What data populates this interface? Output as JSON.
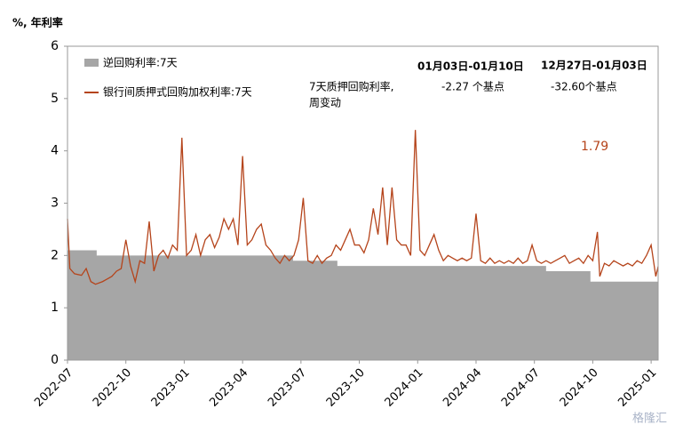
{
  "chart_data": {
    "type": "area-line",
    "y_axis_label": "%, 年利率",
    "xlim": [
      2022.5,
      2025.03
    ],
    "xticks": [
      {
        "value": 2022.5,
        "label": "2022-07"
      },
      {
        "value": 2022.75,
        "label": "2022-10"
      },
      {
        "value": 2023.0,
        "label": "2023-01"
      },
      {
        "value": 2023.25,
        "label": "2023-04"
      },
      {
        "value": 2023.5,
        "label": "2023-07"
      },
      {
        "value": 2023.75,
        "label": "2023-10"
      },
      {
        "value": 2024.0,
        "label": "2024-01"
      },
      {
        "value": 2024.25,
        "label": "2024-04"
      },
      {
        "value": 2024.5,
        "label": "2024-07"
      },
      {
        "value": 2024.75,
        "label": "2024-10"
      },
      {
        "value": 2025.0,
        "label": "2025-01"
      }
    ],
    "ylim": [
      0,
      6
    ],
    "yticks": [
      0,
      1,
      2,
      3,
      4,
      5,
      6
    ],
    "series": [
      {
        "name": "逆回购利率:7天",
        "color": "#a6a6a6",
        "kind": "area",
        "step": "post",
        "x": [
          2022.5,
          2022.625,
          2023.466,
          2023.656,
          2024.55,
          2024.74,
          2025.03
        ],
        "values": [
          2.1,
          2.0,
          1.9,
          1.8,
          1.7,
          1.5,
          1.5
        ]
      },
      {
        "name": "银行间质押式回购加权利率:7天",
        "color": "#b5441b",
        "kind": "line",
        "x": [
          2022.5,
          2022.51,
          2022.53,
          2022.56,
          2022.58,
          2022.6,
          2022.62,
          2022.65,
          2022.67,
          2022.69,
          2022.71,
          2022.73,
          2022.75,
          2022.77,
          2022.79,
          2022.81,
          2022.83,
          2022.85,
          2022.87,
          2022.89,
          2022.91,
          2022.93,
          2022.95,
          2022.97,
          2022.99,
          2023.01,
          2023.03,
          2023.05,
          2023.07,
          2023.09,
          2023.11,
          2023.13,
          2023.15,
          2023.17,
          2023.19,
          2023.21,
          2023.23,
          2023.25,
          2023.27,
          2023.29,
          2023.31,
          2023.33,
          2023.35,
          2023.37,
          2023.39,
          2023.41,
          2023.43,
          2023.45,
          2023.47,
          2023.49,
          2023.51,
          2023.53,
          2023.55,
          2023.57,
          2023.59,
          2023.61,
          2023.63,
          2023.65,
          2023.67,
          2023.69,
          2023.71,
          2023.73,
          2023.75,
          2023.77,
          2023.79,
          2023.81,
          2023.83,
          2023.85,
          2023.87,
          2023.89,
          2023.91,
          2023.93,
          2023.95,
          2023.97,
          2023.99,
          2024.01,
          2024.03,
          2024.05,
          2024.07,
          2024.09,
          2024.11,
          2024.13,
          2024.15,
          2024.17,
          2024.19,
          2024.21,
          2024.23,
          2024.25,
          2024.27,
          2024.29,
          2024.31,
          2024.33,
          2024.35,
          2024.37,
          2024.39,
          2024.41,
          2024.43,
          2024.45,
          2024.47,
          2024.49,
          2024.51,
          2024.53,
          2024.55,
          2024.57,
          2024.59,
          2024.61,
          2024.63,
          2024.65,
          2024.67,
          2024.69,
          2024.71,
          2024.73,
          2024.75,
          2024.77,
          2024.78,
          2024.8,
          2024.82,
          2024.84,
          2024.86,
          2024.88,
          2024.9,
          2024.92,
          2024.94,
          2024.96,
          2024.98,
          2025.0,
          2025.02,
          2025.03
        ],
        "values": [
          2.7,
          1.75,
          1.65,
          1.62,
          1.75,
          1.5,
          1.45,
          1.5,
          1.55,
          1.6,
          1.7,
          1.75,
          2.3,
          1.8,
          1.5,
          1.9,
          1.85,
          2.65,
          1.7,
          2.0,
          2.1,
          1.95,
          2.2,
          2.1,
          4.25,
          2.0,
          2.1,
          2.4,
          2.0,
          2.3,
          2.4,
          2.15,
          2.35,
          2.7,
          2.5,
          2.7,
          2.2,
          3.9,
          2.2,
          2.3,
          2.5,
          2.6,
          2.2,
          2.1,
          1.95,
          1.85,
          2.0,
          1.9,
          2.0,
          2.3,
          3.1,
          1.9,
          1.85,
          2.0,
          1.85,
          1.95,
          2.0,
          2.2,
          2.1,
          2.3,
          2.5,
          2.2,
          2.2,
          2.05,
          2.3,
          2.9,
          2.4,
          3.3,
          2.2,
          3.3,
          2.3,
          2.2,
          2.2,
          2.0,
          4.4,
          2.1,
          2.0,
          2.2,
          2.4,
          2.1,
          1.9,
          2.0,
          1.95,
          1.9,
          1.95,
          1.9,
          1.95,
          2.8,
          1.9,
          1.85,
          1.95,
          1.85,
          1.9,
          1.85,
          1.9,
          1.85,
          1.95,
          1.85,
          1.9,
          2.2,
          1.9,
          1.85,
          1.9,
          1.85,
          1.9,
          1.95,
          2.0,
          1.85,
          1.9,
          1.95,
          1.85,
          2.0,
          1.9,
          2.45,
          1.6,
          1.85,
          1.8,
          1.9,
          1.85,
          1.8,
          1.85,
          1.8,
          1.9,
          1.85,
          2.0,
          2.2,
          1.6,
          1.79
        ]
      }
    ],
    "annotations": {
      "metric_line1": "7天质押回购利率,",
      "metric_line2": "周变动",
      "period1": "01月03日-01月10日",
      "period2": "12月27日-01月03日",
      "change1": "-2.27 个基点",
      "change2": "-32.60个基点",
      "latest": "1.79"
    },
    "watermark": "格隆汇"
  }
}
